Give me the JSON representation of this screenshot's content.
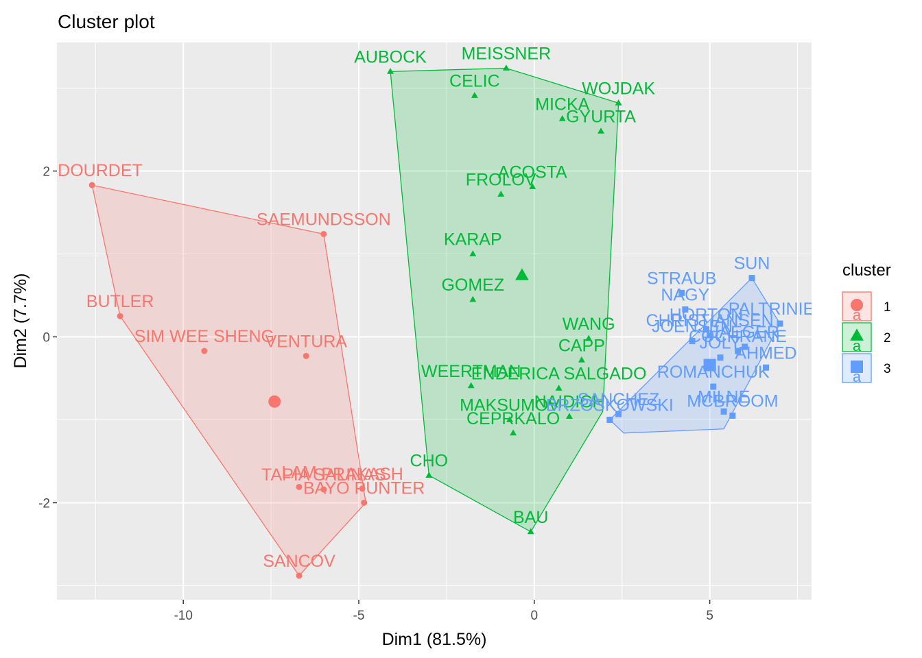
{
  "chart_data": {
    "type": "scatter",
    "title": "Cluster plot",
    "xlabel": "Dim1 (81.5%)",
    "ylabel": "Dim2 (7.7%)",
    "xlim": [
      -13.6,
      7.9
    ],
    "ylim": [
      -3.17,
      3.55
    ],
    "x_ticks": [
      -10,
      -5,
      0,
      5
    ],
    "y_ticks": [
      -2,
      0,
      2
    ],
    "x_tick_labels": [
      "-10",
      "-5",
      "0",
      "5"
    ],
    "y_tick_labels": [
      "-2",
      "0",
      "2"
    ],
    "grid": true,
    "legend": {
      "title": "cluster",
      "position": "right",
      "entries": [
        {
          "label": "1",
          "glyph_letter": "a"
        },
        {
          "label": "2",
          "glyph_letter": "a"
        },
        {
          "label": "3",
          "glyph_letter": "a"
        }
      ]
    },
    "series": [
      {
        "name": "1",
        "marker": "circle",
        "color": "#F8766D",
        "centroid": [
          -7.4,
          -0.78
        ],
        "hull": [
          [
            -12.6,
            1.83
          ],
          [
            -6.0,
            1.24
          ],
          [
            -4.8,
            -2.0
          ],
          [
            -6.7,
            -2.88
          ],
          [
            -11.8,
            0.25
          ]
        ],
        "points": [
          {
            "label": "S DOURDET",
            "x": -12.6,
            "y": 1.83
          },
          {
            "label": "SAEMUNDSSON",
            "x": -6.0,
            "y": 1.24
          },
          {
            "label": "BUTLER",
            "x": -11.8,
            "y": 0.25
          },
          {
            "label": "SIM WEE SHENG",
            "x": -9.4,
            "y": -0.17
          },
          {
            "label": "VENTURA",
            "x": -6.5,
            "y": -0.23
          },
          {
            "label": "LAM",
            "x": -6.7,
            "y": -1.81
          },
          {
            "label": "PRAKASH",
            "x": -4.9,
            "y": -1.83
          },
          {
            "label": "TAPIA SALINAS",
            "x": -6.0,
            "y": -1.84
          },
          {
            "label": "BAYO PUNTER",
            "x": -4.85,
            "y": -2.0
          },
          {
            "label": "SANCOV",
            "x": -6.7,
            "y": -2.88
          }
        ]
      },
      {
        "name": "2",
        "marker": "triangle",
        "color": "#00BA38",
        "centroid": [
          -0.35,
          0.74
        ],
        "hull": [
          [
            -4.1,
            3.2
          ],
          [
            -0.8,
            3.24
          ],
          [
            2.4,
            2.82
          ],
          [
            1.95,
            -0.9
          ],
          [
            -0.1,
            -2.35
          ],
          [
            -3.0,
            -1.67
          ]
        ],
        "points": [
          {
            "label": "AUBOCK",
            "x": -4.1,
            "y": 3.2
          },
          {
            "label": "MEISSNER",
            "x": -0.8,
            "y": 3.24
          },
          {
            "label": "CELIC",
            "x": -1.7,
            "y": 2.91
          },
          {
            "label": "WOJDAK",
            "x": 2.4,
            "y": 2.82
          },
          {
            "label": "MICKA",
            "x": 0.8,
            "y": 2.63
          },
          {
            "label": "GYURTA",
            "x": 1.9,
            "y": 2.48
          },
          {
            "label": "ACOSTA",
            "x": -0.05,
            "y": 1.81
          },
          {
            "label": "FROLOV",
            "x": -0.95,
            "y": 1.72
          },
          {
            "label": "KARAP",
            "x": -1.75,
            "y": 1.0
          },
          {
            "label": "GOMEZ",
            "x": -1.75,
            "y": 0.45
          },
          {
            "label": "WANG",
            "x": 1.55,
            "y": -0.02
          },
          {
            "label": "CAPP",
            "x": 1.35,
            "y": -0.28
          },
          {
            "label": "WEERTMAN",
            "x": -1.8,
            "y": -0.59
          },
          {
            "label": "ENDERICA SALGADO",
            "x": 0.7,
            "y": -0.62
          },
          {
            "label": "MAKSUMOV",
            "x": -0.7,
            "y": -1.0
          },
          {
            "label": "NAIDICH",
            "x": 1.0,
            "y": -0.96
          },
          {
            "label": "CEPRKALO",
            "x": -0.6,
            "y": -1.16
          },
          {
            "label": "CHO",
            "x": -3.0,
            "y": -1.67
          },
          {
            "label": "BAU",
            "x": -0.1,
            "y": -2.35
          }
        ]
      },
      {
        "name": "3",
        "marker": "square",
        "color": "#619CFF",
        "centroid": [
          5.0,
          -0.34
        ],
        "hull": [
          [
            6.2,
            0.71
          ],
          [
            7.0,
            0.16
          ],
          [
            5.4,
            -1.11
          ],
          [
            2.55,
            -1.16
          ],
          [
            2.15,
            -1.0
          ]
        ],
        "points": [
          {
            "label": "SUN",
            "x": 6.2,
            "y": 0.71
          },
          {
            "label": "STRAUB",
            "x": 4.2,
            "y": 0.53
          },
          {
            "label": "NAGY",
            "x": 4.3,
            "y": 0.33
          },
          {
            "label": "PALTRINIERI",
            "x": 7.0,
            "y": 0.16
          },
          {
            "label": "HORTON",
            "x": 4.9,
            "y": 0.09
          },
          {
            "label": "CHRISTIANSEN",
            "x": 5.0,
            "y": 0.02
          },
          {
            "label": "COCHRANE",
            "x": 5.8,
            "y": -0.17
          },
          {
            "label": "JOENSEN",
            "x": 4.5,
            "y": -0.05
          },
          {
            "label": "JAEGER",
            "x": 6.0,
            "y": -0.12
          },
          {
            "label": "JOLY",
            "x": 5.3,
            "y": -0.25
          },
          {
            "label": "AHMED",
            "x": 6.6,
            "y": -0.37
          },
          {
            "label": "ROMANCHUK",
            "x": 5.1,
            "y": -0.6
          },
          {
            "label": "MILNE",
            "x": 5.4,
            "y": -0.9
          },
          {
            "label": "MCBROOM",
            "x": 5.65,
            "y": -0.95
          },
          {
            "label": "SANCHEZ",
            "x": 2.4,
            "y": -0.93
          },
          {
            "label": "BRZOSKOWSKI",
            "x": 2.15,
            "y": -1.0
          }
        ]
      }
    ]
  }
}
